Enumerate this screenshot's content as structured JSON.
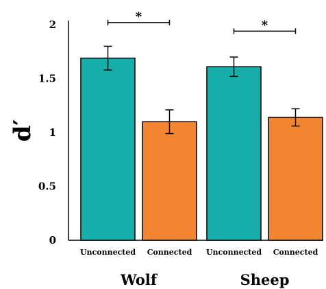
{
  "chart_data": {
    "type": "bar",
    "ylabel": "d′",
    "ylim": [
      0,
      2
    ],
    "y_ticks": [
      "0",
      "0.5",
      "1",
      "1.5",
      "2"
    ],
    "groups": [
      {
        "name": "Wolf",
        "bars": [
          {
            "category": "Unconnected",
            "value": 1.69,
            "err": 0.11,
            "color": "#17ADA8"
          },
          {
            "category": "Connected",
            "value": 1.1,
            "err": 0.11,
            "color": "#F28531"
          }
        ],
        "significance": "*"
      },
      {
        "name": "Sheep",
        "bars": [
          {
            "category": "Unconnected",
            "value": 1.61,
            "err": 0.09,
            "color": "#17ADA8"
          },
          {
            "category": "Connected",
            "value": 1.14,
            "err": 0.08,
            "color": "#F28531"
          }
        ],
        "significance": "*"
      }
    ],
    "significance_bracket_y": [
      2.02,
      1.94
    ]
  }
}
